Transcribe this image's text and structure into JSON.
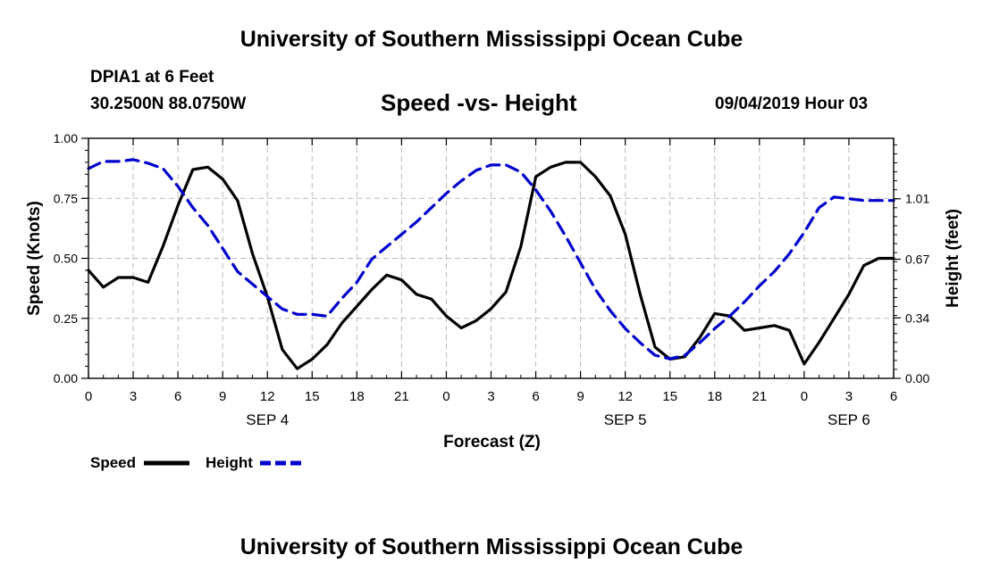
{
  "header": {
    "title_top": "University of Southern Mississippi Ocean Cube",
    "title_bottom": "University of Southern Mississippi Ocean Cube",
    "station": "DPIA1 at 6 Feet",
    "coords": "30.2500N 88.0750W",
    "datetime": "09/04/2019 Hour 03"
  },
  "chart_data": {
    "type": "line",
    "title": "Speed -vs- Height",
    "xlabel": "Forecast (Z)",
    "ylabel": "Speed (Knots)",
    "y2label": "Height (feet)",
    "x_tick_labels": [
      "0",
      "3",
      "6",
      "9",
      "12",
      "15",
      "18",
      "21",
      "0",
      "3",
      "6",
      "9",
      "12",
      "15",
      "18",
      "21",
      "0",
      "3",
      "6"
    ],
    "date_labels": [
      {
        "text": "SEP 4",
        "hour": 12
      },
      {
        "text": "SEP 5",
        "hour": 36
      },
      {
        "text": "SEP 6",
        "hour": 51
      }
    ],
    "xlim": [
      0,
      54
    ],
    "ylim": [
      0,
      1.0
    ],
    "y_ticks": [
      0.0,
      0.25,
      0.5,
      0.75,
      1.0
    ],
    "y_tick_labels": [
      "0.00",
      "0.25",
      "0.50",
      "0.75",
      "1.00"
    ],
    "y2lim": [
      0.0,
      1.35
    ],
    "y2_ticks": [
      0.0,
      0.34,
      0.67,
      1.01
    ],
    "y2_tick_labels": [
      "0.00",
      "0.34",
      "0.67",
      "1.01"
    ],
    "grid": true,
    "legend_position": "bottom-left",
    "series": [
      {
        "name": "Speed",
        "axis": "left",
        "color": "#000000",
        "style": "solid",
        "x": [
          0,
          1,
          2,
          3,
          4,
          5,
          6,
          7,
          8,
          9,
          10,
          11,
          12,
          13,
          14,
          15,
          16,
          17,
          18,
          19,
          20,
          21,
          22,
          23,
          24,
          25,
          26,
          27,
          28,
          29,
          30,
          31,
          32,
          33,
          34,
          35,
          36,
          37,
          38,
          39,
          40,
          41,
          42,
          43,
          44,
          45,
          46,
          47,
          48,
          49,
          50,
          51,
          52,
          53,
          54
        ],
        "values": [
          0.45,
          0.38,
          0.42,
          0.42,
          0.4,
          0.55,
          0.72,
          0.87,
          0.88,
          0.83,
          0.74,
          0.52,
          0.34,
          0.12,
          0.04,
          0.08,
          0.14,
          0.23,
          0.3,
          0.37,
          0.43,
          0.41,
          0.35,
          0.33,
          0.26,
          0.21,
          0.24,
          0.29,
          0.36,
          0.55,
          0.84,
          0.88,
          0.9,
          0.9,
          0.84,
          0.76,
          0.6,
          0.35,
          0.13,
          0.08,
          0.09,
          0.17,
          0.27,
          0.26,
          0.2,
          0.21,
          0.22,
          0.2,
          0.06,
          0.15,
          0.25,
          0.35,
          0.47,
          0.5,
          0.5
        ]
      },
      {
        "name": "Height",
        "axis": "right",
        "color": "#0000cc",
        "style": "dashed",
        "x": [
          0,
          1,
          2,
          3,
          4,
          5,
          6,
          7,
          8,
          9,
          10,
          11,
          12,
          13,
          14,
          15,
          16,
          17,
          18,
          19,
          20,
          21,
          22,
          23,
          24,
          25,
          26,
          27,
          28,
          29,
          30,
          31,
          32,
          33,
          34,
          35,
          36,
          37,
          38,
          39,
          40,
          41,
          42,
          43,
          44,
          45,
          46,
          47,
          48,
          49,
          50,
          51,
          52,
          53,
          54
        ],
        "values": [
          1.18,
          1.22,
          1.22,
          1.23,
          1.21,
          1.18,
          1.08,
          0.96,
          0.86,
          0.73,
          0.6,
          0.53,
          0.46,
          0.39,
          0.36,
          0.36,
          0.35,
          0.45,
          0.54,
          0.67,
          0.74,
          0.81,
          0.88,
          0.96,
          1.04,
          1.11,
          1.17,
          1.2,
          1.2,
          1.16,
          1.06,
          0.94,
          0.8,
          0.65,
          0.5,
          0.38,
          0.28,
          0.2,
          0.13,
          0.11,
          0.13,
          0.2,
          0.28,
          0.35,
          0.43,
          0.52,
          0.6,
          0.7,
          0.82,
          0.96,
          1.02,
          1.01,
          1.0,
          1.0,
          1.0
        ]
      }
    ]
  }
}
